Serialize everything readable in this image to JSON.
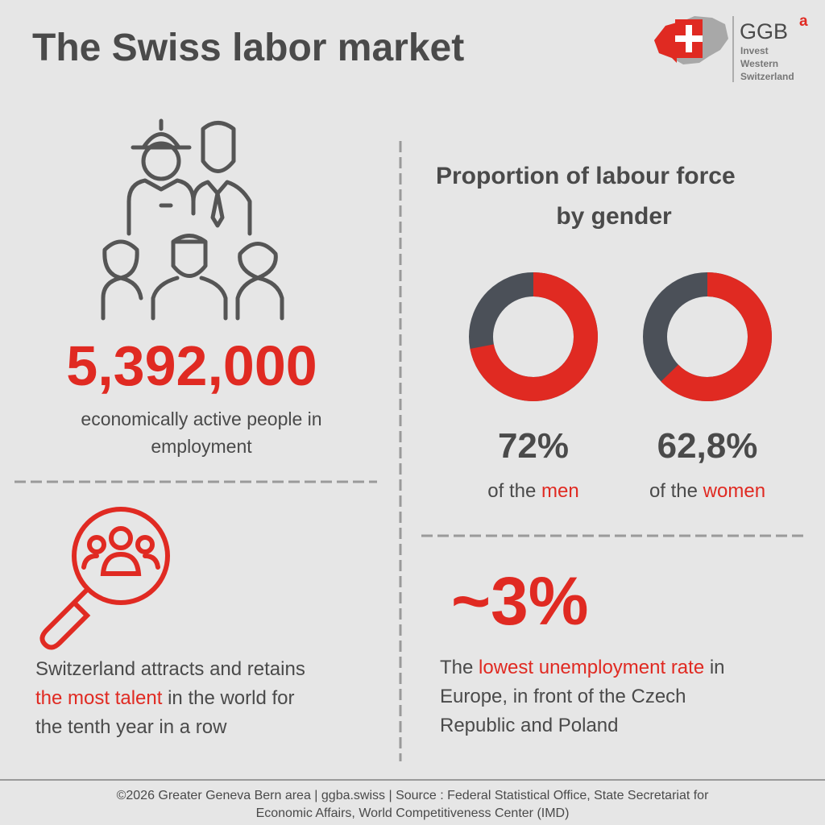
{
  "header": {
    "title": "The Swiss labor market",
    "logo": {
      "name": "GGB",
      "superscript": "a",
      "lines": [
        "Invest",
        "Western",
        "Switzerland"
      ]
    }
  },
  "employment": {
    "value": "5,392,000",
    "caption_lines": [
      "economically active people in",
      "employment"
    ]
  },
  "talent": {
    "lines": [
      [
        {
          "text": "Switzerland attracts and retains"
        }
      ],
      [
        {
          "text": "the most talent",
          "color": "#e02a22"
        },
        {
          "text": " in the world for"
        }
      ],
      [
        {
          "text": "the tenth year in a row"
        }
      ]
    ]
  },
  "gender": {
    "title_lines": [
      "Proportion of labour force",
      "by gender"
    ],
    "color": "#e02a22",
    "track_color": "#4b5058",
    "donuts": [
      {
        "value": 72,
        "value_label": "72%",
        "caption": [
          {
            "text": "of the "
          },
          {
            "text": "men",
            "color": "#e02a22"
          }
        ]
      },
      {
        "value": 62.8,
        "value_label": "62,8%",
        "caption": [
          {
            "text": "of the "
          },
          {
            "text": "women",
            "color": "#e02a22"
          }
        ]
      }
    ]
  },
  "unemployment": {
    "value_label": "~3%",
    "lines": [
      [
        {
          "text": "The "
        },
        {
          "text": "lowest unemployment rate",
          "color": "#e02a22"
        },
        {
          "text": " in"
        }
      ],
      [
        {
          "text": "Europe, in front of the Czech"
        }
      ],
      [
        {
          "text": "Republic and Poland"
        }
      ]
    ]
  },
  "footer": {
    "lines": [
      "©2026 Greater Geneva Bern area | ggba.swiss | Source : Federal Statistical Office,  State Secretariat for",
      "Economic Affairs, World Competitiveness Center (IMD)"
    ]
  }
}
